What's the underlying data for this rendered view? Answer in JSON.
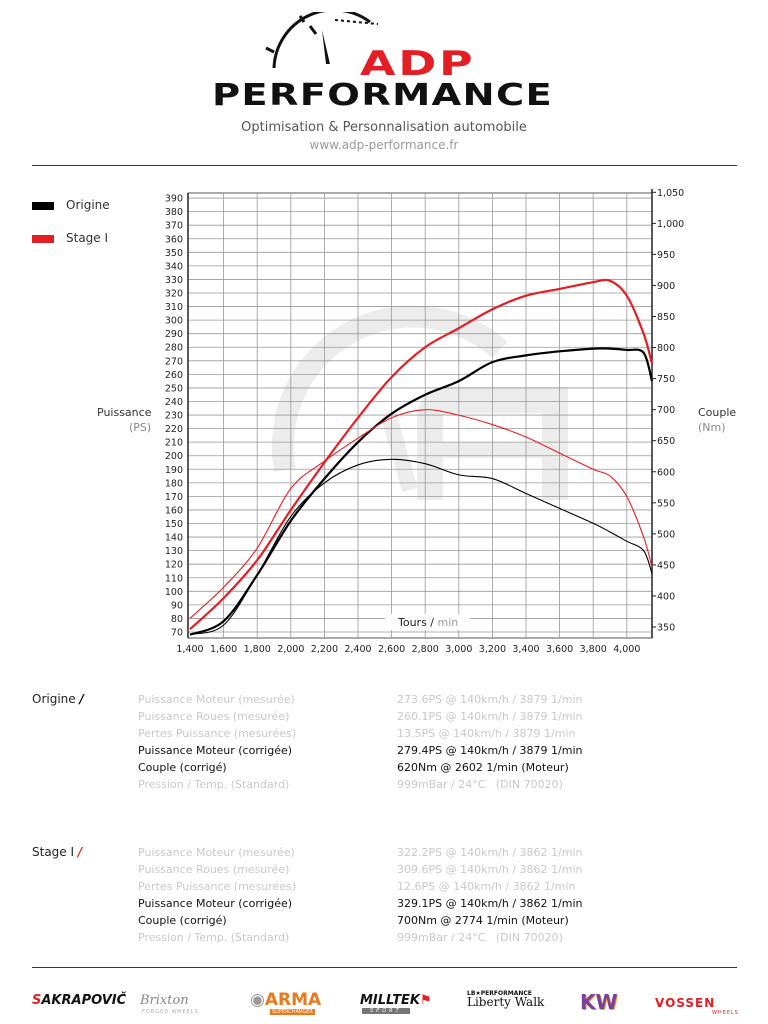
{
  "header": {
    "logo_adp": "ADP",
    "logo_performance": "PERFORMANCE",
    "tagline": "Optimisation & Personnalisation automobile",
    "website": "www.adp-performance.fr"
  },
  "legend": [
    {
      "label": "Origine",
      "color": "#000000"
    },
    {
      "label": "Stage I",
      "color": "#e31e24"
    }
  ],
  "chart_data": {
    "type": "line",
    "xlabel": "Tours",
    "xlabel_unit": "min",
    "ylabel": "Puissance",
    "ylabel_unit": "(PS)",
    "y2label": "Couple",
    "y2label_unit": "(Nm)",
    "xlim": [
      1400,
      4150
    ],
    "ylim": [
      70,
      392
    ],
    "y2lim": [
      341,
      1050
    ],
    "grid": true,
    "legend_placement": "top-left",
    "x_ticks": [
      "1,400",
      "1,600",
      "1,800",
      "2,000",
      "2,200",
      "2,400",
      "2,600",
      "2,800",
      "3,000",
      "3,200",
      "3,400",
      "3,600",
      "3,800",
      "4,000"
    ],
    "y_ticks": [
      70,
      80,
      90,
      100,
      110,
      120,
      130,
      140,
      150,
      160,
      170,
      180,
      190,
      200,
      210,
      220,
      230,
      240,
      250,
      260,
      270,
      280,
      290,
      300,
      310,
      320,
      330,
      340,
      350,
      360,
      370,
      380,
      390
    ],
    "y2_ticks": [
      "350",
      "400",
      "450",
      "500",
      "550",
      "600",
      "650",
      "700",
      "750",
      "800",
      "850",
      "900",
      "950",
      "1,000",
      "1,050"
    ],
    "rpm": [
      1400,
      1600,
      1800,
      2000,
      2200,
      2400,
      2600,
      2800,
      3000,
      3200,
      3400,
      3600,
      3800,
      3900,
      4000,
      4100,
      4150
    ],
    "series": [
      {
        "name": "Origine",
        "quantity": "power_PS",
        "color": "#000000",
        "values": [
          68,
          78,
          112,
          152,
          183,
          210,
          231,
          245,
          255,
          269,
          274,
          277,
          279,
          279,
          278,
          276,
          255
        ]
      },
      {
        "name": "Stage I",
        "quantity": "power_PS",
        "color": "#e31e24",
        "values": [
          72,
          95,
          123,
          160,
          195,
          228,
          258,
          280,
          294,
          308,
          318,
          323,
          328,
          329,
          318,
          290,
          268
        ]
      },
      {
        "name": "Origine",
        "quantity": "torque_Nm",
        "color": "#000000",
        "values": [
          338,
          353,
          434,
          528,
          582,
          611,
          620,
          613,
          595,
          589,
          565,
          541,
          517,
          503,
          488,
          473,
          436
        ]
      },
      {
        "name": "Stage I",
        "quantity": "torque_Nm",
        "color": "#e31e24",
        "values": [
          364,
          414,
          477,
          573,
          617,
          654,
          687,
          700,
          691,
          676,
          656,
          630,
          604,
          593,
          560,
          495,
          447
        ]
      }
    ]
  },
  "results": [
    {
      "name": "Origine",
      "color": "#000000",
      "rows": [
        {
          "label": "Puissance Moteur (mesurée)",
          "value": "273.6PS @ 140km/h / 3879 1/min",
          "emphasis": false
        },
        {
          "label": "Puissance Roues (mesurée)",
          "value": "260.1PS @ 140km/h / 3879 1/min",
          "emphasis": false
        },
        {
          "label": "Pertes Puissance (mesurées)",
          "value": "13.5PS @ 140km/h / 3879 1/min",
          "emphasis": false
        },
        {
          "label": "Puissance Moteur (corrigée)",
          "value": "279.4PS @ 140km/h / 3879 1/min",
          "emphasis": true
        },
        {
          "label": "Couple (corrigé)",
          "value": "620Nm @ 2602 1/min (Moteur)",
          "emphasis": true
        },
        {
          "label": "Pression / Temp. (Standard)",
          "value": "999mBar / 24°C   (DIN 70020)",
          "emphasis": false
        }
      ]
    },
    {
      "name": "Stage I",
      "color": "#e31e24",
      "rows": [
        {
          "label": "Puissance Moteur (mesurée)",
          "value": "322.2PS @ 140km/h / 3862 1/min",
          "emphasis": false
        },
        {
          "label": "Puissance Roues (mesurée)",
          "value": "309.6PS @ 140km/h / 3862 1/min",
          "emphasis": false
        },
        {
          "label": "Pertes Puissance (mesurées)",
          "value": "12.6PS @ 140km/h / 3862 1/min",
          "emphasis": false
        },
        {
          "label": "Puissance Moteur (corrigée)",
          "value": "329.1PS @ 140km/h / 3862 1/min",
          "emphasis": true
        },
        {
          "label": "Couple (corrigé)",
          "value": "700Nm @ 2774 1/min (Moteur)",
          "emphasis": true
        },
        {
          "label": "Pression / Temp. (Standard)",
          "value": "999mBar / 24°C   (DIN 70020)",
          "emphasis": false
        }
      ]
    }
  ],
  "footer": {
    "brands": [
      "AKRAPOVIČ",
      "Brixton",
      "ARMA",
      "MILLTEK",
      "Liberty Walk",
      "KW",
      "VOSSEN"
    ],
    "brand_sublabels": {
      "arma": "SUPERCHARGER",
      "milltek": "SPORT",
      "libertywalk": "LB★PERFORMANCE",
      "vossen": "WHEELS",
      "brixton": "FORGED WHEELS"
    }
  }
}
